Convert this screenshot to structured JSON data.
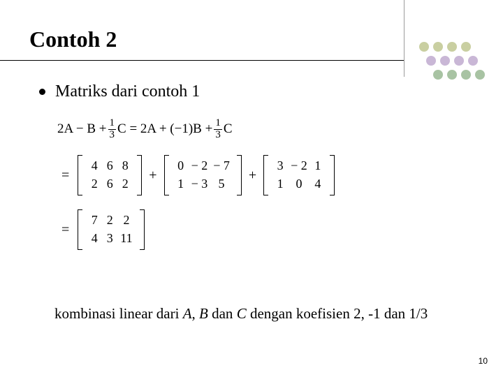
{
  "slide": {
    "title": "Contoh 2",
    "bullet": "Matriks dari contoh 1",
    "caption_pre": "kombinasi linear dari ",
    "caption_A": "A",
    "caption_sep1": ", ",
    "caption_B": "B",
    "caption_mid": " dan ",
    "caption_C": "C",
    "caption_post": " dengan koefisien 2, -1 dan 1/3",
    "page_number": "10"
  },
  "equation": {
    "line1_lhs": "2A − B + ",
    "line1_frac1_num": "1",
    "line1_frac1_den": "3",
    "line1_mid": "C = 2A + (−1)B + ",
    "line1_frac2_num": "1",
    "line1_frac2_den": "3",
    "line1_end": "C",
    "matrices": {
      "m1": {
        "cols": 3,
        "cells": [
          "4",
          "6",
          "8",
          "2",
          "6",
          "2"
        ]
      },
      "m2": {
        "cols": 3,
        "cells": [
          "0",
          "− 2",
          "− 7",
          "1",
          "− 3",
          "5"
        ]
      },
      "m3": {
        "cols": 3,
        "cells": [
          "3",
          "− 2",
          "1",
          "1",
          "0",
          "4"
        ]
      },
      "result": {
        "cols": 3,
        "cells": [
          "7",
          "2",
          "2",
          "4",
          "3",
          "11"
        ]
      }
    },
    "eq": "=",
    "plus": "+"
  },
  "decor": {
    "dot_colors": {
      "row1": "#c9cfa1",
      "row2": "#c9b7d6",
      "row3": "#a8c3a3"
    },
    "dot_radius": 7,
    "dot_gap": 20
  },
  "typography": {
    "title_fontsize": 32,
    "body_fontsize": 24,
    "eq_fontsize": 19,
    "caption_fontsize": 21,
    "text_color": "#000000",
    "background": "#ffffff"
  }
}
